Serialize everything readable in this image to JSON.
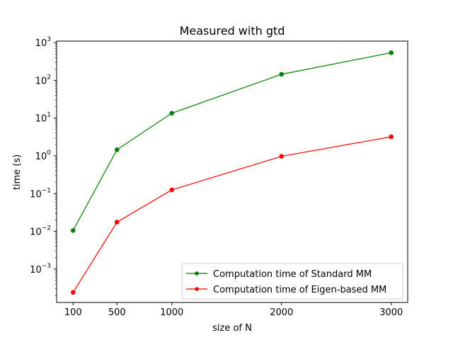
{
  "chart_data": {
    "type": "line",
    "title": "Measured with gtd",
    "xlabel": "size of N",
    "ylabel": "time (s)",
    "yscale": "log",
    "x": [
      100,
      500,
      1000,
      2000,
      3000
    ],
    "x_ticks": [
      "100",
      "500",
      "1000",
      "2000",
      "3000"
    ],
    "y_ticks": [
      {
        "value": 0.001,
        "base": "10",
        "exp": "−3"
      },
      {
        "value": 0.01,
        "base": "10",
        "exp": "−2"
      },
      {
        "value": 0.1,
        "base": "10",
        "exp": "−1"
      },
      {
        "value": 1,
        "base": "10",
        "exp": "0"
      },
      {
        "value": 10,
        "base": "10",
        "exp": "1"
      },
      {
        "value": 100,
        "base": "10",
        "exp": "2"
      },
      {
        "value": 1000,
        "base": "10",
        "exp": "3"
      }
    ],
    "xlim": [
      -50,
      3150
    ],
    "ylim": [
      0.00013,
      1100
    ],
    "grid": false,
    "legend_position": "lower-right",
    "series": [
      {
        "name": "Computation time of Standard MM",
        "color": "#008000",
        "marker": "circle",
        "values": [
          0.0105,
          1.45,
          13.5,
          145,
          540
        ]
      },
      {
        "name": "Computation time of Eigen-based MM",
        "color": "#ff0000",
        "marker": "circle",
        "values": [
          0.00024,
          0.0175,
          0.125,
          0.97,
          3.2
        ]
      }
    ]
  }
}
